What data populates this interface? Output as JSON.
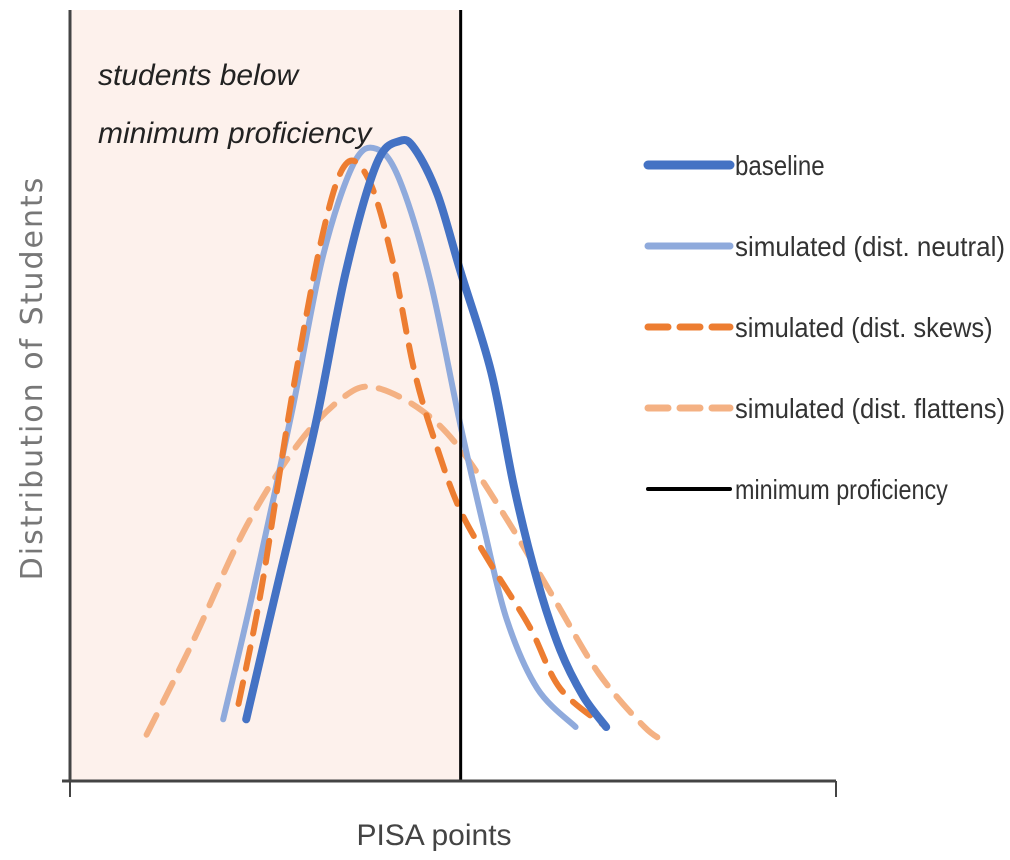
{
  "chart_data": {
    "type": "line",
    "title": "",
    "xlabel": "PISA points",
    "ylabel": "Distribution of Students",
    "annotation": [
      "students below",
      "minimum proficiency"
    ],
    "threshold": {
      "name": "minimum proficiency",
      "x": 0.51
    },
    "xlim": [
      0,
      1
    ],
    "ylim": [
      0,
      1
    ],
    "grid": false,
    "legend_placement": "right",
    "series": [
      {
        "name": "baseline",
        "color": "#4472c4",
        "style": "solid",
        "points": [
          [
            0.23,
            0.08
          ],
          [
            0.27,
            0.25
          ],
          [
            0.32,
            0.46
          ],
          [
            0.36,
            0.66
          ],
          [
            0.4,
            0.8
          ],
          [
            0.43,
            0.83
          ],
          [
            0.45,
            0.82
          ],
          [
            0.48,
            0.76
          ],
          [
            0.51,
            0.66
          ],
          [
            0.55,
            0.53
          ],
          [
            0.58,
            0.38
          ],
          [
            0.61,
            0.26
          ],
          [
            0.64,
            0.17
          ],
          [
            0.67,
            0.11
          ],
          [
            0.7,
            0.07
          ]
        ]
      },
      {
        "name": "simulated (dist. neutral)",
        "color": "#8faadc",
        "style": "solid",
        "points": [
          [
            0.2,
            0.08
          ],
          [
            0.24,
            0.25
          ],
          [
            0.29,
            0.48
          ],
          [
            0.33,
            0.68
          ],
          [
            0.37,
            0.8
          ],
          [
            0.4,
            0.82
          ],
          [
            0.43,
            0.78
          ],
          [
            0.47,
            0.65
          ],
          [
            0.51,
            0.46
          ],
          [
            0.54,
            0.33
          ],
          [
            0.57,
            0.21
          ],
          [
            0.61,
            0.12
          ],
          [
            0.66,
            0.07
          ]
        ]
      },
      {
        "name": "simulated (dist. skews)",
        "color": "#ed7d31",
        "style": "dashed",
        "points": [
          [
            0.22,
            0.1
          ],
          [
            0.25,
            0.25
          ],
          [
            0.29,
            0.5
          ],
          [
            0.33,
            0.71
          ],
          [
            0.36,
            0.8
          ],
          [
            0.39,
            0.78
          ],
          [
            0.42,
            0.68
          ],
          [
            0.45,
            0.53
          ],
          [
            0.48,
            0.43
          ],
          [
            0.51,
            0.35
          ],
          [
            0.55,
            0.28
          ],
          [
            0.6,
            0.2
          ],
          [
            0.64,
            0.12
          ],
          [
            0.7,
            0.07
          ]
        ]
      },
      {
        "name": "simulated (dist. flattens)",
        "color": "#f4b183",
        "style": "dashed",
        "points": [
          [
            0.1,
            0.06
          ],
          [
            0.16,
            0.18
          ],
          [
            0.23,
            0.33
          ],
          [
            0.3,
            0.44
          ],
          [
            0.36,
            0.5
          ],
          [
            0.4,
            0.51
          ],
          [
            0.46,
            0.48
          ],
          [
            0.51,
            0.43
          ],
          [
            0.57,
            0.34
          ],
          [
            0.63,
            0.24
          ],
          [
            0.69,
            0.14
          ],
          [
            0.75,
            0.07
          ],
          [
            0.78,
            0.05
          ]
        ]
      }
    ]
  }
}
